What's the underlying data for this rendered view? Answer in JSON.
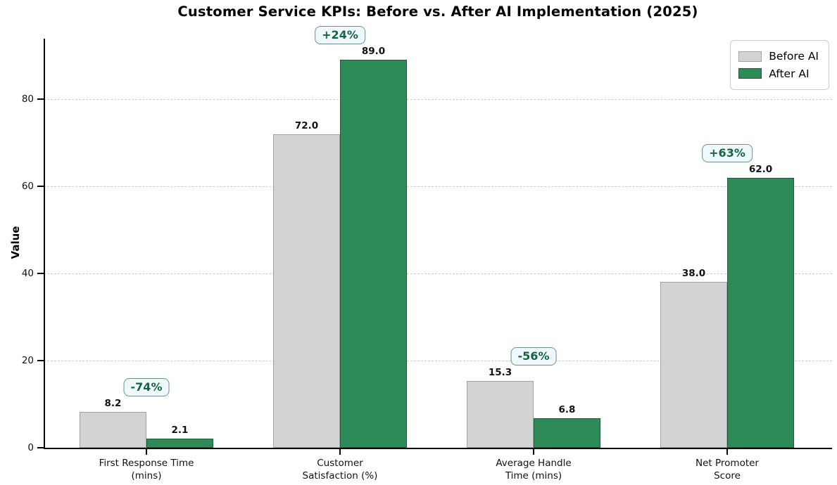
{
  "chart_data": {
    "type": "bar",
    "title": "Customer Service KPIs: Before vs. After AI Implementation (2025)",
    "xlabel": "",
    "ylabel": "Value",
    "ylim": [
      0,
      93.9
    ],
    "yticks": [
      0,
      20,
      40,
      60,
      80
    ],
    "grid": "horizontal-dashed",
    "legend_position": "upper-right",
    "categories": [
      "First Response Time\n(mins)",
      "Customer\nSatisfaction (%)",
      "Average Handle\nTime (mins)",
      "Net Promoter\nScore"
    ],
    "series": [
      {
        "name": "Before AI",
        "color": "#d3d3d3",
        "edge_color": "#a3a3a3",
        "values": [
          8.2,
          72.0,
          15.3,
          38.0
        ],
        "labels": [
          "8.2",
          "72.0",
          "15.3",
          "38.0"
        ]
      },
      {
        "name": "After AI",
        "color": "#2e8b57",
        "edge_color": "#1b5e3a",
        "values": [
          2.1,
          89.0,
          6.8,
          62.0
        ],
        "labels": [
          "2.1",
          "89.0",
          "6.8",
          "62.0"
        ]
      }
    ],
    "annotations": [
      "-74%",
      "+24%",
      "-56%",
      "+63%"
    ],
    "annotation_style": {
      "text_color": "#17653a",
      "border_color": "#67997d",
      "background": "#f0f8ff"
    }
  }
}
